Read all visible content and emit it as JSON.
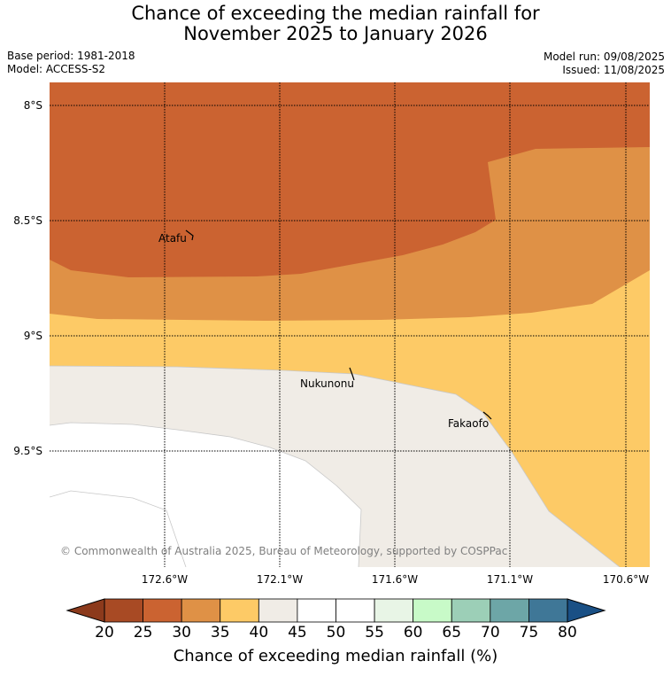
{
  "title": {
    "line1": "Chance of exceeding the median rainfall for",
    "line2": "November 2025 to January 2026"
  },
  "meta": {
    "base_period": "Base period: 1981-2018",
    "model": "Model: ACCESS-S2",
    "model_run": "Model run: 09/08/2025",
    "issued": "Issued: 11/08/2025"
  },
  "map": {
    "lat_labels": [
      "8°S",
      "8.5°S",
      "9°S",
      "9.5°S"
    ],
    "lon_labels": [
      "172.6°W",
      "172.1°W",
      "171.6°W",
      "171.1°W",
      "170.6°W"
    ],
    "places": [
      {
        "name": "Atafu"
      },
      {
        "name": "Nukunonu"
      },
      {
        "name": "Fakaofo"
      }
    ],
    "copyright": "© Commonwealth of Australia 2025, Bureau of Meteorology, supported by COSPPac",
    "colors": {
      "band_25_30": "#cb6331",
      "band_30_35": "#df9146",
      "band_35_40": "#fdca66",
      "band_40_45": "#f0ece6",
      "band_45_55": "#ffffff"
    }
  },
  "colorbar": {
    "ticks": [
      "20",
      "25",
      "30",
      "35",
      "40",
      "45",
      "50",
      "55",
      "60",
      "65",
      "70",
      "75",
      "80"
    ],
    "colors": [
      "#a84a24",
      "#cb6331",
      "#df9146",
      "#fdca66",
      "#f0ece6",
      "#ffffff",
      "#ffffff",
      "#e8f5e6",
      "#c8fac8",
      "#9ccfb7",
      "#6da6a7",
      "#3f7797"
    ],
    "under_color": "#8c3a1c",
    "over_color": "#1a5085",
    "label": "Chance of exceeding median rainfall (%)"
  }
}
